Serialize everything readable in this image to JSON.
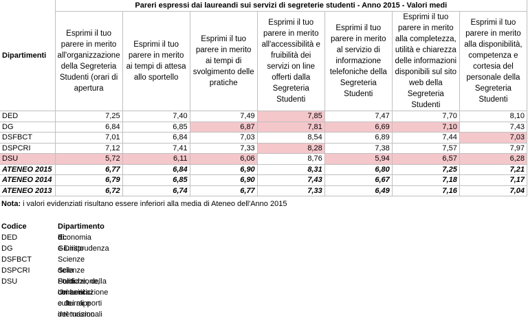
{
  "table": {
    "title": "Pareri espressi dai laureandi sui servizi di segreterie studenti - Anno 2015 - Valori medi",
    "corner_header": "Dipartimenti",
    "column_headers": [
      "Esprimi il tuo parere in merito all'organizzazione della Segreteria Studenti (orari di apertura",
      "Esprimi il tuo parere in merito ai tempi di attesa allo sportello",
      "Esprimi il tuo parere in merito ai tempi di svolgimento delle pratiche",
      "Esprimi il tuo parere in merito all'accessibilità e fruibilità dei servizi on line offerti dalla Segreteria Studenti",
      "Esprimi il tuo parere in merito al servizio di informazione telefoniche della Segreteria Studenti",
      "Esprimi il tuo parere in merito alla completezza, utilità e chiarezza delle informazioni disponibili sul sito web della Segreteria Studenti",
      "Esprimi il tuo parere in merito alla disponibilità, competenza e cortesia del personale della Segreteria Studenti"
    ],
    "highlight_color": "#f4c7cb",
    "rows": [
      {
        "label": "DED",
        "values": [
          "7,25",
          "7,40",
          "7,49",
          "7,85",
          "7,47",
          "7,70",
          "8,10"
        ],
        "highlighted": [
          false,
          false,
          false,
          true,
          false,
          false,
          false
        ],
        "label_highlighted": false,
        "emphasis": false
      },
      {
        "label": "DG",
        "values": [
          "6,84",
          "6,85",
          "6,87",
          "7,81",
          "6,69",
          "7,10",
          "7,43"
        ],
        "highlighted": [
          false,
          false,
          true,
          true,
          true,
          true,
          false
        ],
        "label_highlighted": false,
        "emphasis": false
      },
      {
        "label": "DSFBCT",
        "values": [
          "7,01",
          "6,84",
          "7,03",
          "8,54",
          "6,89",
          "7,44",
          "7,03"
        ],
        "highlighted": [
          false,
          false,
          false,
          false,
          false,
          false,
          true
        ],
        "label_highlighted": false,
        "emphasis": false
      },
      {
        "label": "DSPCRI",
        "values": [
          "7,12",
          "7,41",
          "7,33",
          "8,28",
          "7,38",
          "7,57",
          "7,97"
        ],
        "highlighted": [
          false,
          false,
          false,
          true,
          false,
          false,
          false
        ],
        "label_highlighted": false,
        "emphasis": false
      },
      {
        "label": "DSU",
        "values": [
          "5,72",
          "6,11",
          "6,06",
          "8,76",
          "5,94",
          "6,57",
          "6,28"
        ],
        "highlighted": [
          true,
          true,
          true,
          false,
          true,
          true,
          true
        ],
        "label_highlighted": true,
        "emphasis": false
      },
      {
        "label": "ATENEO 2015",
        "values": [
          "6,77",
          "6,84",
          "6,90",
          "8,31",
          "6,80",
          "7,25",
          "7,21"
        ],
        "highlighted": [
          false,
          false,
          false,
          false,
          false,
          false,
          false
        ],
        "label_highlighted": false,
        "emphasis": true
      },
      {
        "label": "ATENEO 2014",
        "values": [
          "6,79",
          "6,85",
          "6,90",
          "7,43",
          "6,67",
          "7,18",
          "7,17"
        ],
        "highlighted": [
          false,
          false,
          false,
          false,
          false,
          false,
          false
        ],
        "label_highlighted": false,
        "emphasis": true
      },
      {
        "label": "ATENEO 2013",
        "values": [
          "6,72",
          "6,74",
          "6,77",
          "7,33",
          "6,49",
          "7,16",
          "7,04"
        ],
        "highlighted": [
          false,
          false,
          false,
          false,
          false,
          false,
          false
        ],
        "label_highlighted": false,
        "emphasis": true
      }
    ]
  },
  "note_label": "Nota:",
  "note": "i valori evidenziati risultano essere inferiori alla media di Ateneo dell'Anno 2015",
  "legend": {
    "headers": [
      "Codice",
      "Dipartimento di:"
    ],
    "rows": [
      [
        "DED",
        "Economia e Diritto"
      ],
      [
        "DG",
        "Giurisprudenza"
      ],
      [
        "DSFBCT",
        "Scienze della Formazione, dei beni culturali e del turismo"
      ],
      [
        "DSPCRI",
        "Scienze Politiche, della comunicazione e dei rapporti internazionali"
      ],
      [
        "DSU",
        "Studi Umanistici"
      ]
    ]
  }
}
